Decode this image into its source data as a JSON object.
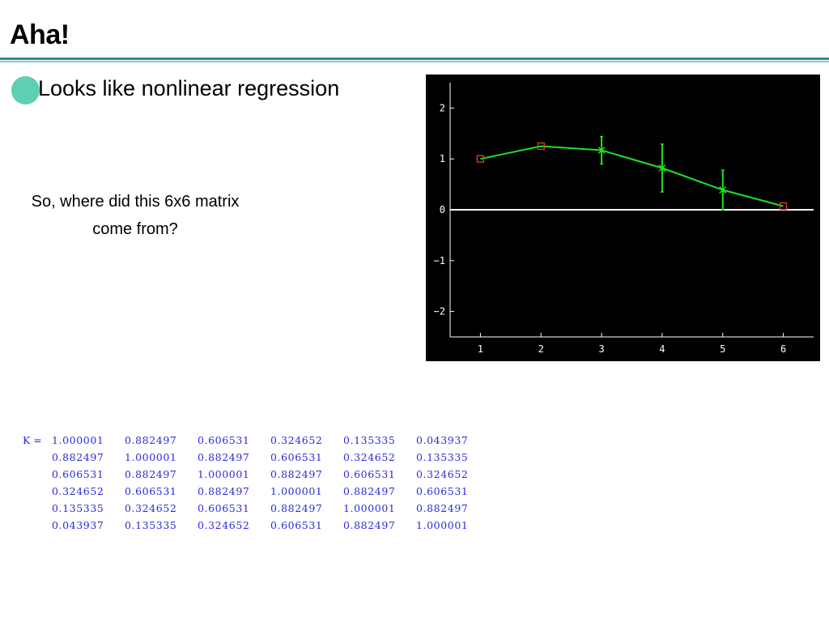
{
  "slide": {
    "title": "Aha!",
    "bullet": "Looks like nonlinear regression",
    "question_lines": [
      "So, where did this 6x6 matrix",
      "come from?"
    ]
  },
  "colors": {
    "rule": "#2f8f7f",
    "bullet": "#5ecfb0",
    "plot_background": "#000000",
    "series": "#22e022",
    "observed_marker": "#e04020",
    "matrix_text": "#2a2ae0"
  },
  "chart_data": {
    "type": "line",
    "xlim": [
      0.5,
      6.5
    ],
    "ylim": [
      -2.5,
      2.5
    ],
    "x_ticks": [
      "1",
      "2",
      "3",
      "4",
      "5",
      "6"
    ],
    "y_ticks": [
      "2",
      "1",
      "0",
      "−1",
      "−2"
    ],
    "y_tick_values": [
      2,
      1,
      0,
      -1,
      -2
    ],
    "zero_line": true,
    "grid": false,
    "series": [
      {
        "x": [
          1,
          2,
          3,
          4,
          5,
          6
        ],
        "y": [
          1.0,
          1.25,
          1.17,
          0.82,
          0.39,
          0.07
        ],
        "markers": [
          "square",
          "square",
          "x",
          "x",
          "x",
          "square"
        ],
        "error": [
          null,
          null,
          0.27,
          0.47,
          0.39,
          null
        ]
      }
    ]
  },
  "matrix": {
    "label": "K =",
    "rows": [
      [
        "1.000001",
        "0.882497",
        "0.606531",
        "0.324652",
        "0.135335",
        "0.043937"
      ],
      [
        "0.882497",
        "1.000001",
        "0.882497",
        "0.606531",
        "0.324652",
        "0.135335"
      ],
      [
        "0.606531",
        "0.882497",
        "1.000001",
        "0.882497",
        "0.606531",
        "0.324652"
      ],
      [
        "0.324652",
        "0.606531",
        "0.882497",
        "1.000001",
        "0.882497",
        "0.606531"
      ],
      [
        "0.135335",
        "0.324652",
        "0.606531",
        "0.882497",
        "1.000001",
        "0.882497"
      ],
      [
        "0.043937",
        "0.135335",
        "0.324652",
        "0.606531",
        "0.882497",
        "1.000001"
      ]
    ]
  }
}
